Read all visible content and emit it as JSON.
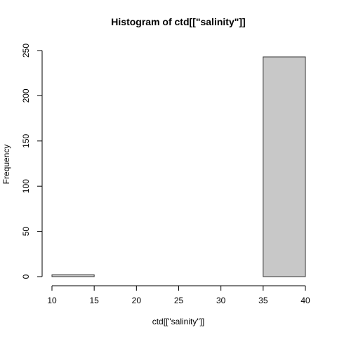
{
  "chart_data": {
    "type": "bar",
    "subtype": "histogram",
    "title": "Histogram of ctd[[\"salinity\"]]",
    "xlabel": "ctd[[\"salinity\"]]",
    "ylabel": "Frequency",
    "bins": [
      {
        "from": 10,
        "to": 15,
        "count": 2
      },
      {
        "from": 15,
        "to": 20,
        "count": 0
      },
      {
        "from": 20,
        "to": 25,
        "count": 0
      },
      {
        "from": 25,
        "to": 30,
        "count": 0
      },
      {
        "from": 30,
        "to": 35,
        "count": 0
      },
      {
        "from": 35,
        "to": 40,
        "count": 243
      }
    ],
    "xlim": [
      10,
      40
    ],
    "ylim": [
      0,
      250
    ],
    "x_ticks": [
      "10",
      "15",
      "20",
      "25",
      "30",
      "35",
      "40"
    ],
    "y_ticks": [
      "0",
      "50",
      "100",
      "150",
      "200",
      "250"
    ],
    "grid": false,
    "bar_fill": "#c8c8c8",
    "bar_stroke": "#333333"
  }
}
